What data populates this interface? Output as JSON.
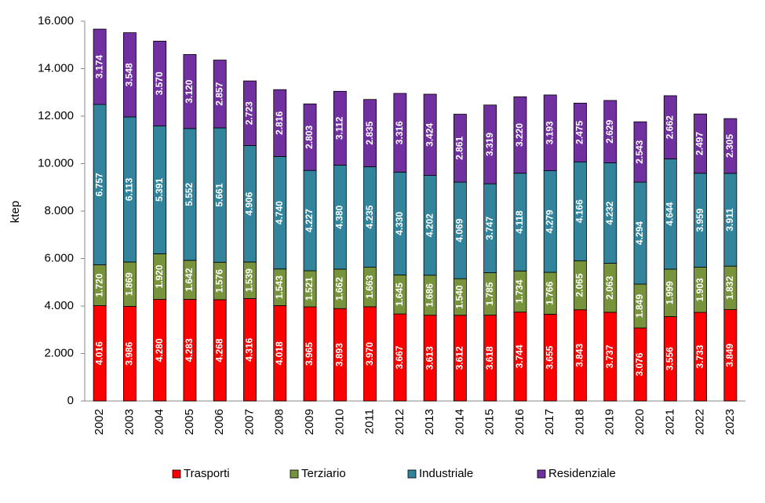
{
  "chart_data": {
    "type": "stacked_bar",
    "y_label": "ktep",
    "categories": [
      "2002",
      "2003",
      "2004",
      "2005",
      "2006",
      "2007",
      "2008",
      "2009",
      "2010",
      "2011",
      "2012",
      "2013",
      "2014",
      "2015",
      "2016",
      "2017",
      "2018",
      "2019",
      "2020",
      "2021",
      "2022",
      "2023"
    ],
    "series": [
      {
        "name": "Trasporti",
        "color": "#ff0000",
        "values": [
          4016,
          3986,
          4280,
          4283,
          4268,
          4316,
          4018,
          3965,
          3893,
          3970,
          3667,
          3613,
          3612,
          3618,
          3744,
          3655,
          3843,
          3737,
          3076,
          3556,
          3733,
          3849
        ],
        "value_labels": [
          "4.016",
          "3.986",
          "4.280",
          "4.283",
          "4.268",
          "4.316",
          "4.018",
          "3.965",
          "3.893",
          "3.970",
          "3.667",
          "3.613",
          "3.612",
          "3.618",
          "3.744",
          "3.655",
          "3.843",
          "3.737",
          "3.076",
          "3.556",
          "3.733",
          "3.849"
        ]
      },
      {
        "name": "Terziario",
        "color": "#77933c",
        "values": [
          1720,
          1869,
          1920,
          1642,
          1576,
          1539,
          1543,
          1521,
          1662,
          1663,
          1645,
          1686,
          1540,
          1785,
          1734,
          1766,
          2065,
          2063,
          1849,
          1999,
          1903,
          1832
        ],
        "value_labels": [
          "1.720",
          "1.869",
          "1.920",
          "1.642",
          "1.576",
          "1.539",
          "1.543",
          "1.521",
          "1.662",
          "1.663",
          "1.645",
          "1.686",
          "1.540",
          "1.785",
          "1.734",
          "1.766",
          "2.065",
          "2.063",
          "1.849",
          "1.999",
          "1.903",
          "1.832"
        ]
      },
      {
        "name": "Industriale",
        "color": "#31849b",
        "values": [
          6757,
          6113,
          5391,
          5552,
          5661,
          4906,
          4740,
          4227,
          4380,
          4235,
          4330,
          4202,
          4069,
          3747,
          4118,
          4279,
          4166,
          4232,
          4294,
          4644,
          3959,
          3911
        ],
        "value_labels": [
          "6.757",
          "6.113",
          "5.391",
          "5.552",
          "5.661",
          "4.906",
          "4.740",
          "4.227",
          "4.380",
          "4.235",
          "4.330",
          "4.202",
          "4.069",
          "3.747",
          "4.118",
          "4.279",
          "4.166",
          "4.232",
          "4.294",
          "4.644",
          "3.959",
          "3.911"
        ]
      },
      {
        "name": "Residenziale",
        "color": "#7030a0",
        "values": [
          3174,
          3548,
          3570,
          3120,
          2857,
          2723,
          2816,
          2803,
          3112,
          2835,
          3316,
          3424,
          2861,
          3319,
          3220,
          3193,
          2475,
          2629,
          2543,
          2662,
          2497,
          2305
        ],
        "value_labels": [
          "3.174",
          "3.548",
          "3.570",
          "3.120",
          "2.857",
          "2.723",
          "2.816",
          "2.803",
          "3.112",
          "2.835",
          "3.316",
          "3.424",
          "2.861",
          "3.319",
          "3.220",
          "3.193",
          "2.475",
          "2.629",
          "2.543",
          "2.662",
          "2.497",
          "2.305"
        ]
      }
    ],
    "ylim": [
      0,
      16000
    ],
    "yticks": [
      0,
      {
        "value": 2000,
        "label": "2.000"
      },
      {
        "value": 4000,
        "label": "4.000"
      },
      {
        "value": 6000,
        "label": "6.000"
      },
      {
        "value": 8000,
        "label": "8.000"
      },
      {
        "value": 10000,
        "label": "10.000"
      },
      {
        "value": 12000,
        "label": "12.000"
      },
      {
        "value": 14000,
        "label": "14.000"
      },
      {
        "value": 16000,
        "label": "16.000"
      }
    ],
    "grid": false,
    "legend": "bottom"
  }
}
